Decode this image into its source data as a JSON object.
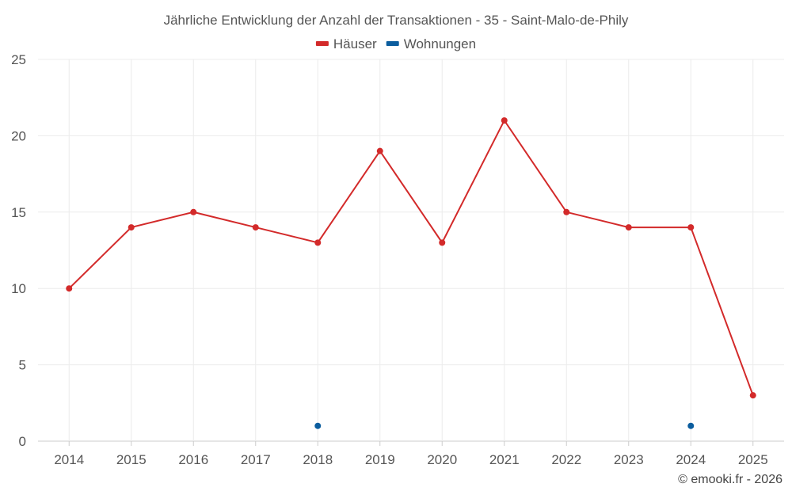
{
  "chart_data": {
    "type": "line",
    "title": "Jährliche Entwicklung der Anzahl der Transaktionen - 35 - Saint-Malo-de-Phily",
    "categories": [
      "2014",
      "2015",
      "2016",
      "2017",
      "2018",
      "2019",
      "2020",
      "2021",
      "2022",
      "2023",
      "2024",
      "2025"
    ],
    "series": [
      {
        "name": "Häuser",
        "color": "#d32a2a",
        "values": [
          10,
          14,
          15,
          14,
          13,
          19,
          13,
          21,
          15,
          14,
          14,
          3
        ]
      },
      {
        "name": "Wohnungen",
        "color": "#0b5d9e",
        "values": [
          null,
          null,
          null,
          null,
          1,
          null,
          null,
          null,
          null,
          null,
          1,
          null
        ]
      }
    ],
    "ylim": [
      0,
      25
    ],
    "yticks": [
      "0",
      "5",
      "10",
      "15",
      "20",
      "25"
    ],
    "grid": true,
    "legend_position": "top-center",
    "xlabel": "",
    "ylabel": ""
  },
  "credit": "© emooki.fr - 2026"
}
